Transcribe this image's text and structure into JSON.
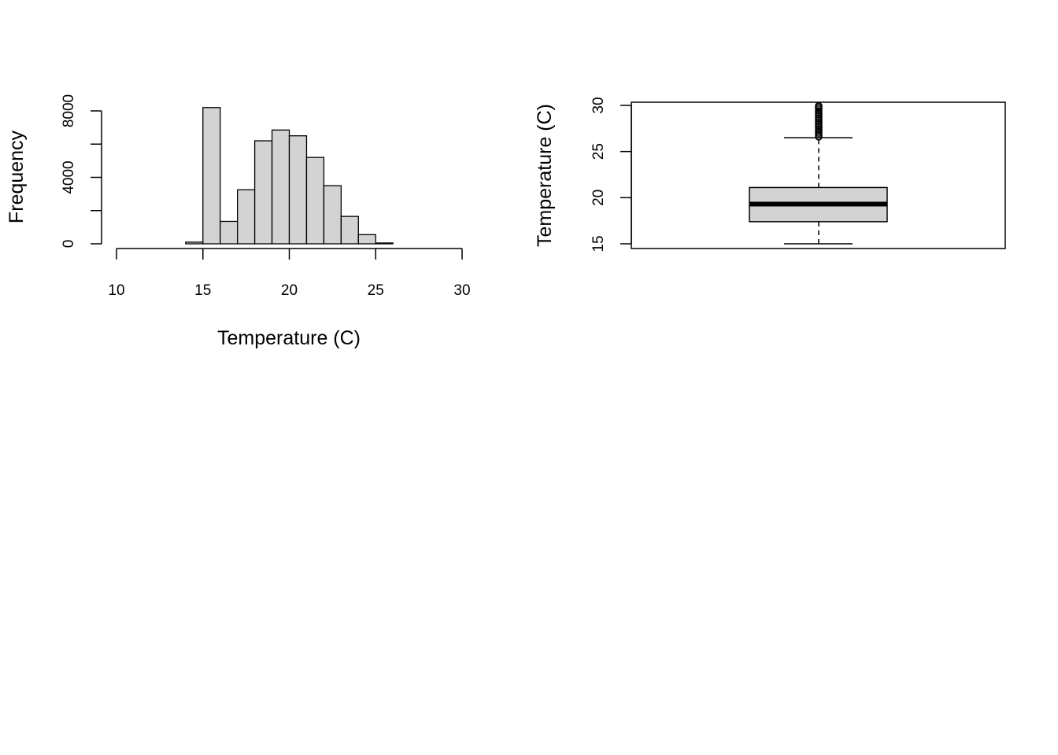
{
  "chart_data": [
    {
      "type": "bar",
      "subtype": "histogram",
      "title": "",
      "xlabel": "Temperature (C)",
      "ylabel": "Frequency",
      "xlim": [
        10,
        30
      ],
      "ylim": [
        0,
        8000
      ],
      "x_ticks": [
        "10",
        "15",
        "20",
        "25",
        "30"
      ],
      "y_ticks": [
        "0",
        "4000",
        "8000"
      ],
      "bin_width": 1,
      "bins": [
        {
          "start": 10,
          "value": 0
        },
        {
          "start": 11,
          "value": 0
        },
        {
          "start": 12,
          "value": 0
        },
        {
          "start": 13,
          "value": 0
        },
        {
          "start": 14,
          "value": 100
        },
        {
          "start": 15,
          "value": 8200
        },
        {
          "start": 16,
          "value": 1350
        },
        {
          "start": 17,
          "value": 3250
        },
        {
          "start": 18,
          "value": 6200
        },
        {
          "start": 19,
          "value": 6850
        },
        {
          "start": 20,
          "value": 6500
        },
        {
          "start": 21,
          "value": 5200
        },
        {
          "start": 22,
          "value": 3500
        },
        {
          "start": 23,
          "value": 1650
        },
        {
          "start": 24,
          "value": 550
        },
        {
          "start": 25,
          "value": 50
        },
        {
          "start": 26,
          "value": 0
        },
        {
          "start": 27,
          "value": 0
        },
        {
          "start": 28,
          "value": 0
        },
        {
          "start": 29,
          "value": 0
        }
      ],
      "bar_fill": "#d3d3d3",
      "grid": false
    },
    {
      "type": "boxplot",
      "title": "",
      "xlabel": "",
      "ylabel": "Temperature (C)",
      "ylim": [
        15,
        30
      ],
      "y_ticks": [
        "15",
        "20",
        "25",
        "30"
      ],
      "box": {
        "min": 15.0,
        "q1": 17.4,
        "median": 19.3,
        "q3": 21.1,
        "upper_whisker": 26.5,
        "outliers": [
          26.6,
          26.8,
          27.0,
          27.2,
          27.4,
          27.6,
          27.8,
          28.0,
          28.2,
          28.4,
          28.6,
          28.8,
          29.0,
          29.2,
          29.4,
          29.6,
          29.8,
          29.95
        ]
      },
      "box_fill": "#d3d3d3",
      "grid": false
    }
  ]
}
